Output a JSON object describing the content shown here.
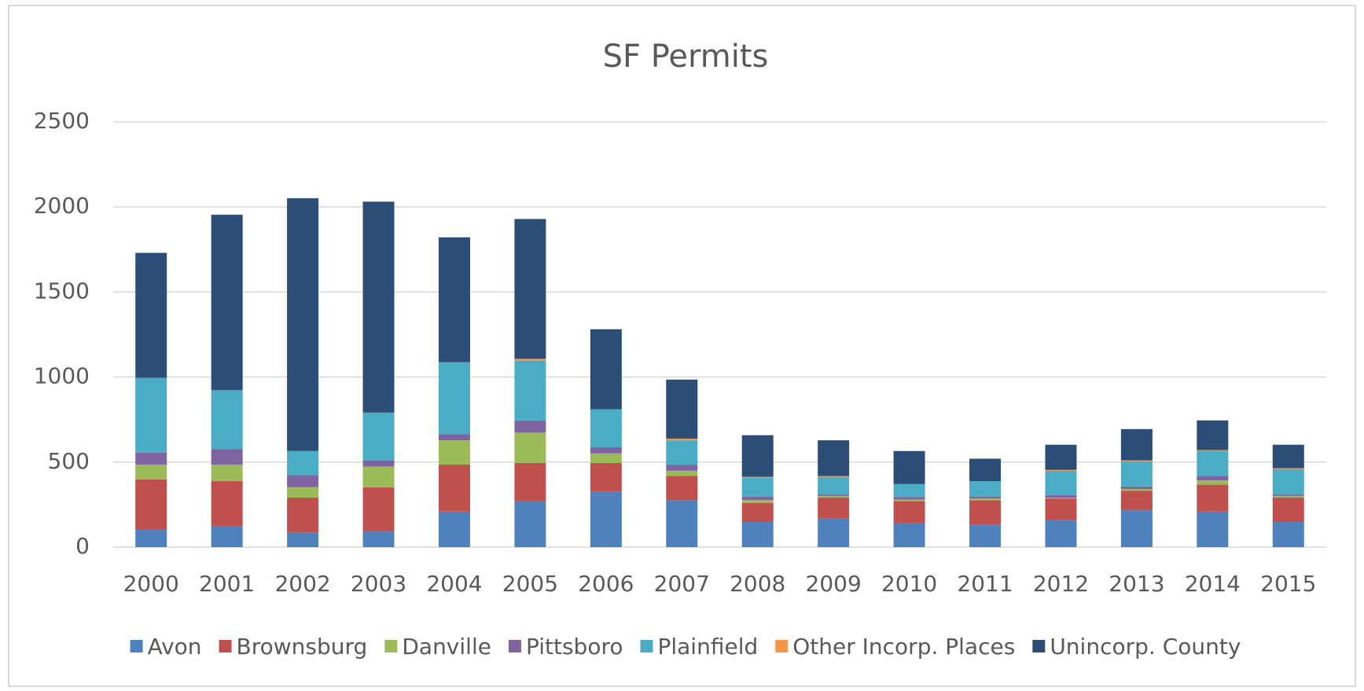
{
  "chart_data": {
    "type": "stacked_bar",
    "title": "SF Permits",
    "categories": [
      "2000",
      "2001",
      "2002",
      "2003",
      "2004",
      "2005",
      "2006",
      "2007",
      "2008",
      "2009",
      "2010",
      "2011",
      "2012",
      "2013",
      "2014",
      "2015"
    ],
    "series": [
      {
        "name": "Avon",
        "color": "#4f81bd",
        "values": [
          102,
          122,
          87,
          92,
          209,
          270,
          327,
          276,
          148,
          168,
          143,
          133,
          158,
          219,
          209,
          148
        ]
      },
      {
        "name": "Brownsburg",
        "color": "#c0504d",
        "values": [
          296,
          266,
          204,
          260,
          276,
          225,
          168,
          142,
          112,
          123,
          127,
          143,
          128,
          113,
          158,
          143
        ]
      },
      {
        "name": "Danville",
        "color": "#9bbb59",
        "values": [
          87,
          97,
          61,
          122,
          143,
          178,
          56,
          31,
          16,
          10,
          10,
          10,
          5,
          10,
          26,
          10
        ]
      },
      {
        "name": "Pittsboro",
        "color": "#8064a2",
        "values": [
          71,
          92,
          71,
          36,
          35,
          72,
          36,
          36,
          20,
          10,
          15,
          10,
          15,
          15,
          25,
          10
        ]
      },
      {
        "name": "Plainfield",
        "color": "#4bacc6",
        "values": [
          439,
          346,
          143,
          281,
          424,
          352,
          224,
          143,
          112,
          102,
          76,
          92,
          143,
          148,
          148,
          148
        ]
      },
      {
        "name": "Other Incorp. Places",
        "color": "#f79646",
        "values": [
          0,
          0,
          0,
          0,
          0,
          10,
          0,
          10,
          5,
          5,
          0,
          0,
          5,
          5,
          5,
          5
        ]
      },
      {
        "name": "Unincorp. County",
        "color": "#2c4d75",
        "values": [
          735,
          1031,
          1485,
          1240,
          734,
          822,
          470,
          347,
          245,
          210,
          194,
          132,
          148,
          184,
          174,
          138
        ]
      }
    ],
    "ylim": [
      0,
      2500
    ],
    "yticks": [
      0,
      500,
      1000,
      1500,
      2000,
      2500
    ],
    "grid": true,
    "legend": "bottom"
  }
}
